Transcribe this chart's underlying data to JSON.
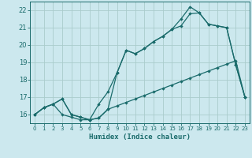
{
  "xlabel": "Humidex (Indice chaleur)",
  "background_color": "#cce8ee",
  "grid_color": "#aacccc",
  "line_color": "#1a6b6b",
  "xlim": [
    -0.5,
    23.5
  ],
  "ylim": [
    15.5,
    22.5
  ],
  "xticks": [
    0,
    1,
    2,
    3,
    4,
    5,
    6,
    7,
    8,
    9,
    10,
    11,
    12,
    13,
    14,
    15,
    16,
    17,
    18,
    19,
    20,
    21,
    22,
    23
  ],
  "yticks": [
    16,
    17,
    18,
    19,
    20,
    21,
    22
  ],
  "line1_x": [
    0,
    1,
    2,
    3,
    4,
    5,
    6,
    7,
    8,
    9,
    10,
    11,
    12,
    13,
    14,
    15,
    16,
    17,
    18,
    19,
    20,
    21,
    22,
    23
  ],
  "line1_y": [
    16.0,
    16.4,
    16.6,
    16.0,
    15.85,
    15.7,
    15.7,
    15.8,
    16.3,
    16.5,
    16.7,
    16.9,
    17.1,
    17.3,
    17.5,
    17.7,
    17.9,
    18.1,
    18.3,
    18.5,
    18.7,
    18.9,
    19.1,
    17.0
  ],
  "line2_x": [
    0,
    1,
    2,
    3,
    4,
    5,
    6,
    7,
    8,
    9,
    10,
    11,
    12,
    13,
    14,
    15,
    16,
    17,
    18,
    19,
    20,
    21,
    22,
    23
  ],
  "line2_y": [
    16.0,
    16.4,
    16.6,
    16.9,
    16.0,
    15.85,
    15.7,
    16.6,
    17.3,
    18.4,
    19.7,
    19.5,
    19.8,
    20.2,
    20.5,
    20.9,
    21.1,
    21.8,
    21.85,
    21.2,
    21.1,
    21.0,
    18.85,
    17.0
  ],
  "line3_x": [
    0,
    1,
    2,
    3,
    4,
    5,
    6,
    7,
    8,
    9,
    10,
    11,
    12,
    13,
    14,
    15,
    16,
    17,
    18,
    19,
    20,
    21,
    22,
    23
  ],
  "line3_y": [
    16.0,
    16.4,
    16.6,
    16.9,
    16.0,
    15.85,
    15.7,
    15.8,
    16.3,
    18.4,
    19.7,
    19.5,
    19.8,
    20.2,
    20.5,
    20.9,
    21.5,
    22.2,
    21.85,
    21.2,
    21.1,
    21.0,
    18.85,
    17.0
  ]
}
